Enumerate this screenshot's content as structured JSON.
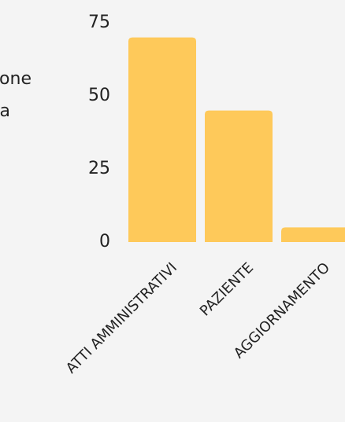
{
  "chart_data": {
    "type": "bar",
    "annotations": [
      "one",
      "a"
    ],
    "categories": [
      "ATTI AMMINISTRATIVI",
      "PAZIENTE",
      "AGGIORNAMENTO"
    ],
    "values": [
      70,
      45,
      5
    ],
    "color": "#fec95a",
    "ylim": [
      0,
      75
    ],
    "yticks": [
      0,
      25,
      50,
      75
    ],
    "grid": false
  }
}
